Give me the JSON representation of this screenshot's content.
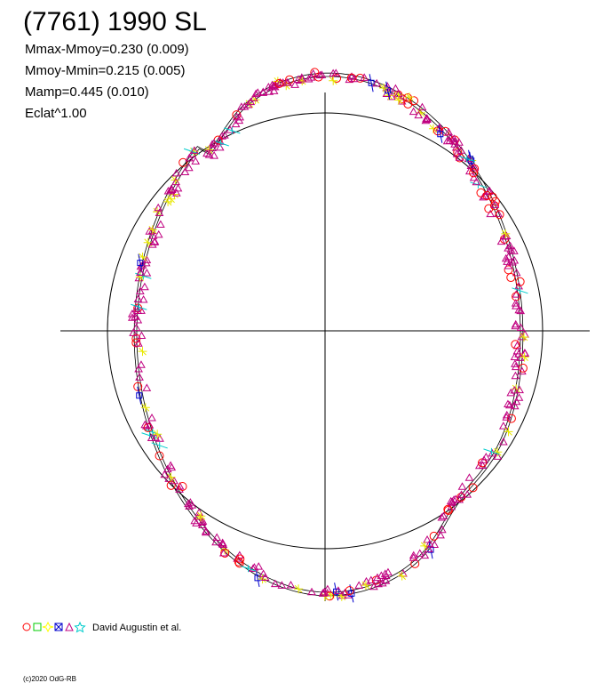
{
  "title": "(7761) 1990 SL",
  "stats": [
    "Mmax-Mmoy=0.230 (0.009)",
    "Mmoy-Mmin=0.215 (0.005)",
    "Mamp=0.445 (0.010)",
    "Eclat^1.00"
  ],
  "legend": {
    "observer": "David Augustin et al."
  },
  "footer": "(c)2020 OdG-RB"
}
